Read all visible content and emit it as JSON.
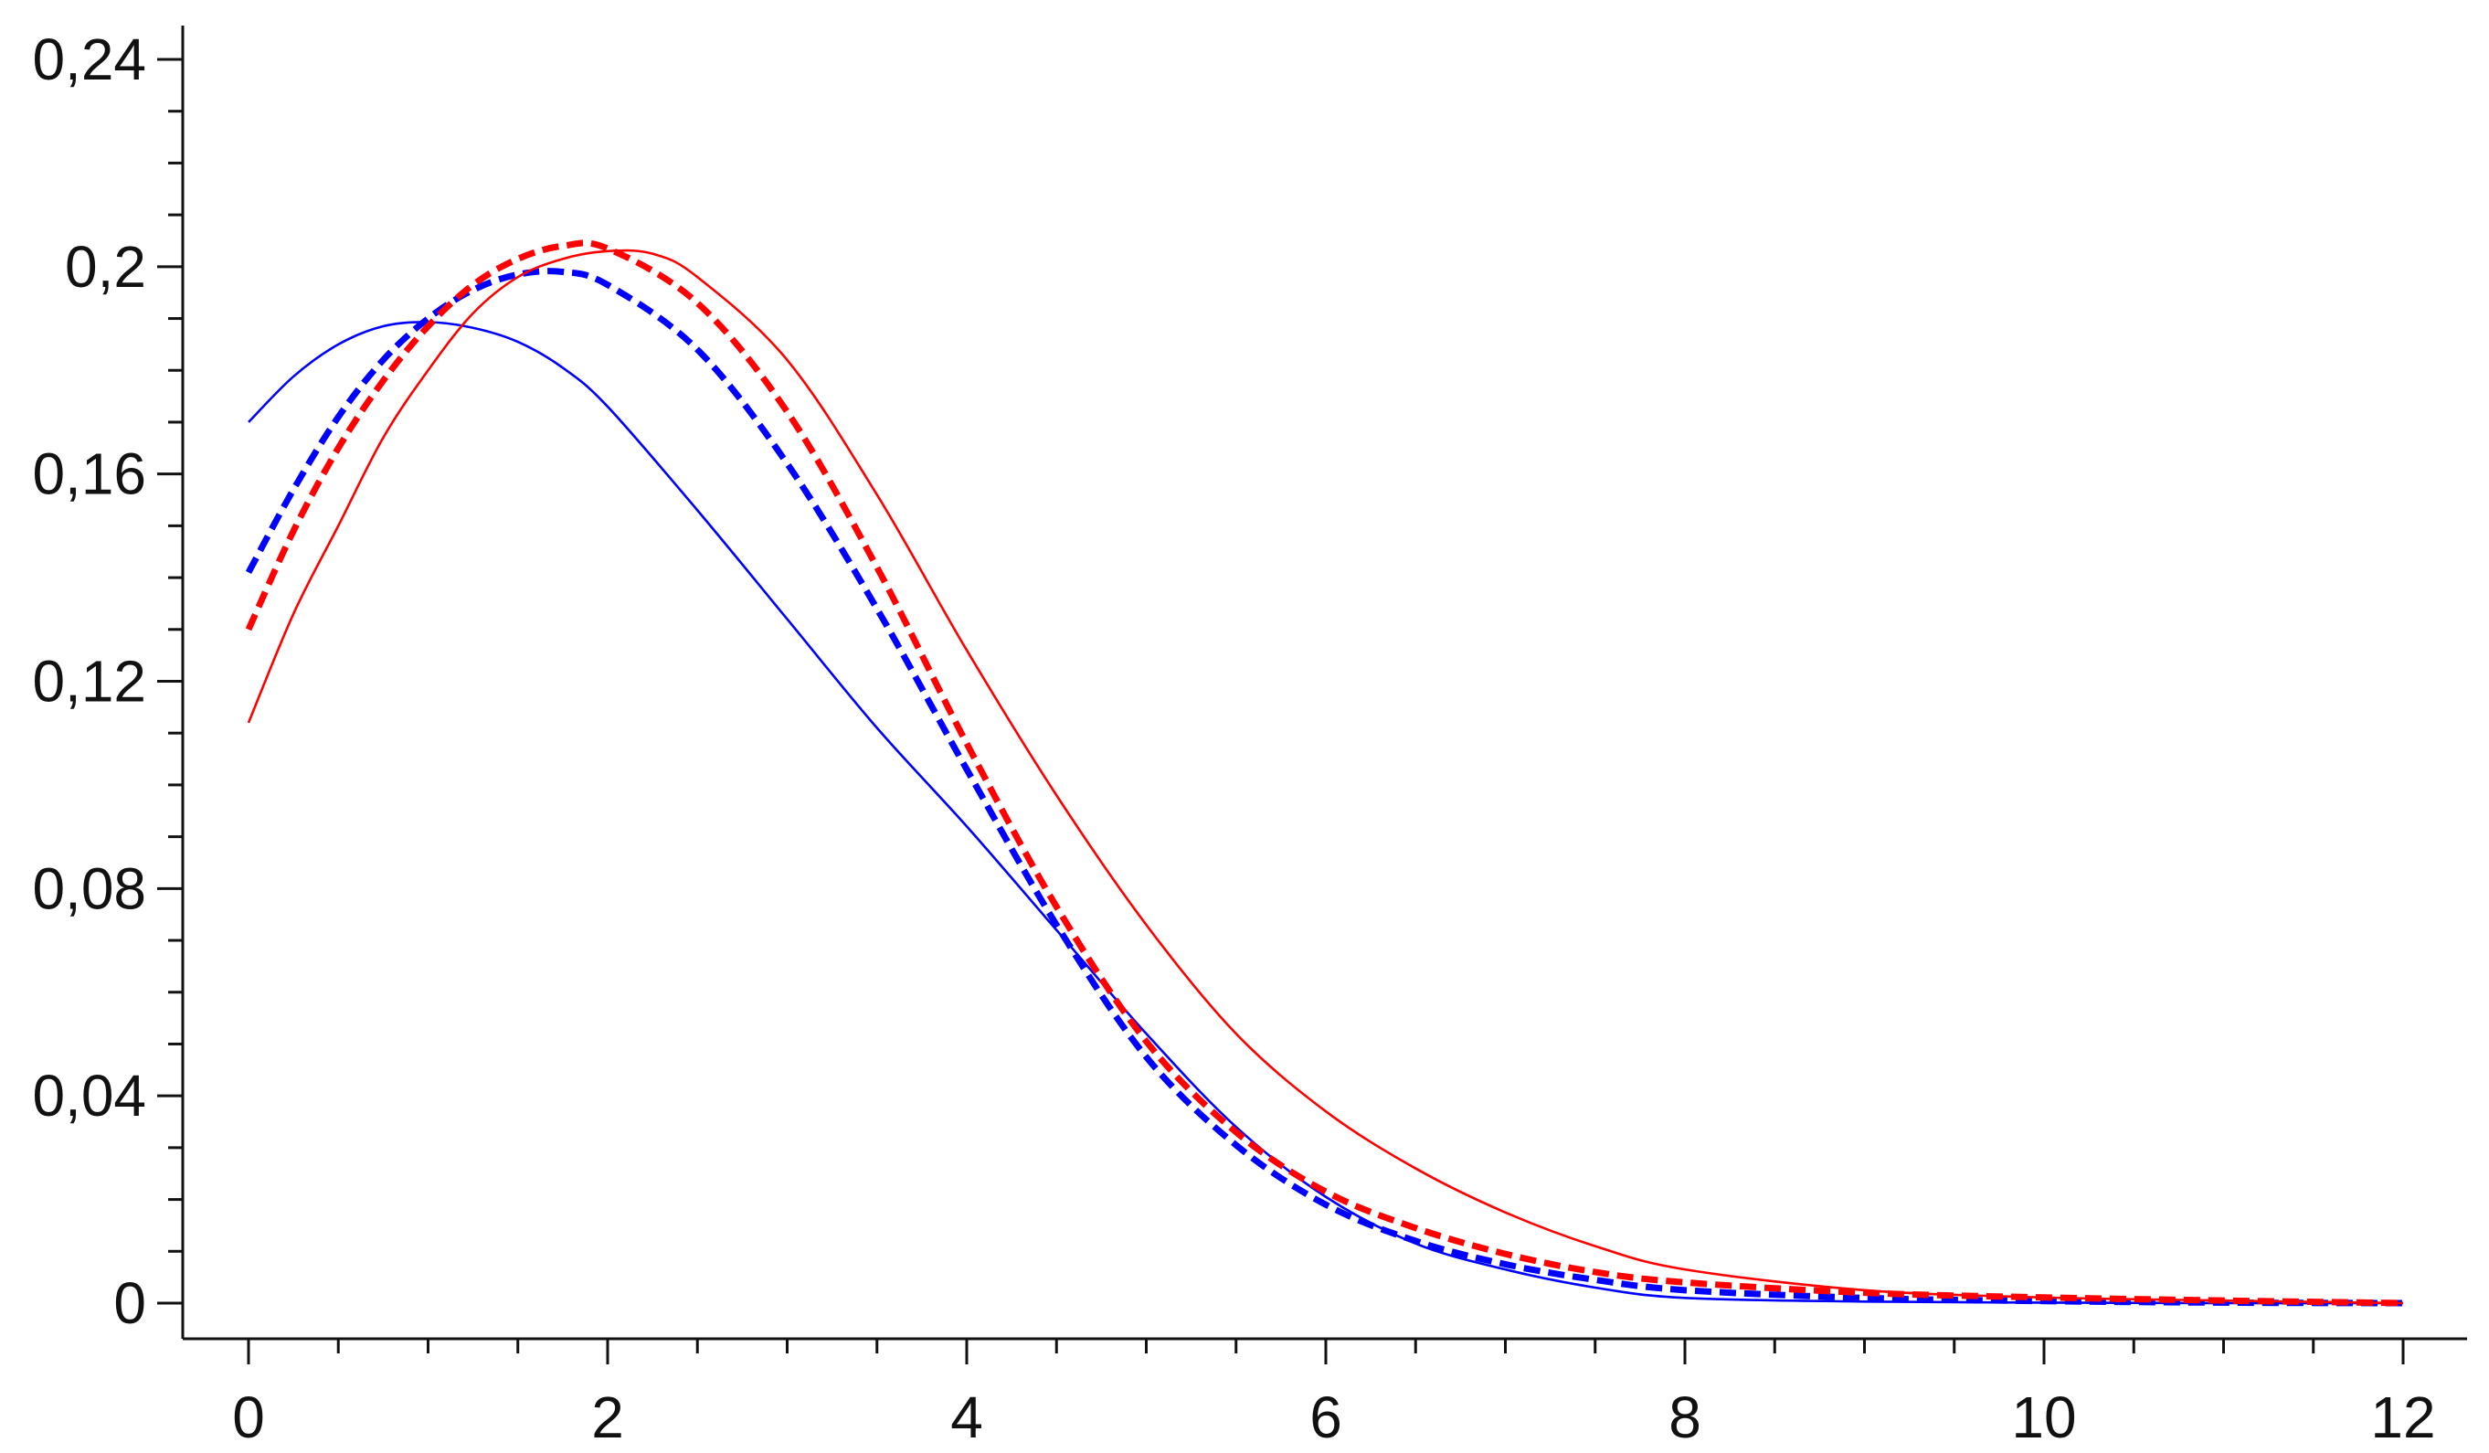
{
  "chart_data": {
    "type": "line",
    "title": "",
    "xlabel": "",
    "ylabel": "",
    "xlim": [
      0,
      12
    ],
    "ylim": [
      0,
      0.24
    ],
    "grid": false,
    "legend": "none",
    "x_major_ticks": [
      0,
      2,
      4,
      6,
      8,
      10,
      12
    ],
    "x_tick_labels": [
      "0",
      "2",
      "4",
      "6",
      "8",
      "10",
      "12"
    ],
    "x_minor_step": 0.5,
    "y_major_ticks": [
      0,
      0.04,
      0.08,
      0.12,
      0.16,
      0.2,
      0.24
    ],
    "y_tick_labels": [
      "0",
      "0,04",
      "0,08",
      "0,12",
      "0,16",
      "0,2",
      "0,24"
    ],
    "y_minor_step": 0.01,
    "series": [
      {
        "color": "#0000ff",
        "style": "solid",
        "x": [
          0,
          0.25,
          0.5,
          0.75,
          1.0,
          1.25,
          1.5,
          1.75,
          2.0,
          2.5,
          3.0,
          3.5,
          4.0,
          4.5,
          5.0,
          5.5,
          6.0,
          6.5,
          7.0,
          7.5,
          8.0,
          9.0,
          10.0,
          11.0,
          12.0
        ],
        "y": [
          0.17,
          0.1788,
          0.185,
          0.1885,
          0.1893,
          0.1882,
          0.1855,
          0.1805,
          0.173,
          0.153,
          0.132,
          0.111,
          0.092,
          0.072,
          0.052,
          0.034,
          0.0205,
          0.0115,
          0.0065,
          0.003,
          0.001,
          0.0003,
          0.0001,
          0.0,
          0.0
        ]
      },
      {
        "color": "#0000ff",
        "style": "dashed",
        "x": [
          0,
          0.25,
          0.5,
          0.75,
          1.0,
          1.25,
          1.5,
          1.75,
          2.0,
          2.5,
          3.0,
          3.5,
          4.0,
          4.5,
          5.0,
          5.5,
          6.0,
          6.5,
          7.0,
          7.5,
          8.0,
          9.0,
          10.0,
          11.0,
          12.0
        ],
        "y": [
          0.141,
          0.157,
          0.171,
          0.182,
          0.19,
          0.1955,
          0.1985,
          0.199,
          0.1965,
          0.184,
          0.162,
          0.134,
          0.103,
          0.073,
          0.0475,
          0.0305,
          0.019,
          0.012,
          0.0075,
          0.0045,
          0.0025,
          0.001,
          0.0004,
          0.0001,
          0.0
        ]
      },
      {
        "color": "#ff0000",
        "style": "dashed",
        "x": [
          0,
          0.25,
          0.5,
          0.75,
          1.0,
          1.25,
          1.5,
          1.75,
          2.0,
          2.5,
          3.0,
          3.5,
          4.0,
          4.5,
          5.0,
          5.5,
          6.0,
          6.5,
          7.0,
          7.5,
          8.0,
          9.0,
          10.0,
          11.0,
          12.0
        ],
        "y": [
          0.13,
          0.149,
          0.165,
          0.178,
          0.1885,
          0.1965,
          0.2015,
          0.204,
          0.2035,
          0.193,
          0.172,
          0.142,
          0.108,
          0.0765,
          0.0505,
          0.033,
          0.0215,
          0.0145,
          0.0095,
          0.006,
          0.004,
          0.002,
          0.0011,
          0.0005,
          0.0
        ]
      },
      {
        "color": "#ff0000",
        "style": "solid",
        "x": [
          0,
          0.25,
          0.5,
          0.75,
          1.0,
          1.25,
          1.5,
          1.75,
          2.0,
          2.25,
          2.5,
          3.0,
          3.5,
          4.0,
          4.5,
          5.0,
          5.5,
          6.0,
          6.5,
          7.0,
          7.5,
          8.0,
          9.0,
          10.0,
          11.0,
          12.0
        ],
        "y": [
          0.112,
          0.133,
          0.15,
          0.167,
          0.18,
          0.191,
          0.198,
          0.2015,
          0.203,
          0.2025,
          0.198,
          0.182,
          0.156,
          0.126,
          0.098,
          0.073,
          0.052,
          0.037,
          0.026,
          0.0175,
          0.011,
          0.0065,
          0.0025,
          0.0011,
          0.0005,
          0.0
        ]
      }
    ]
  }
}
